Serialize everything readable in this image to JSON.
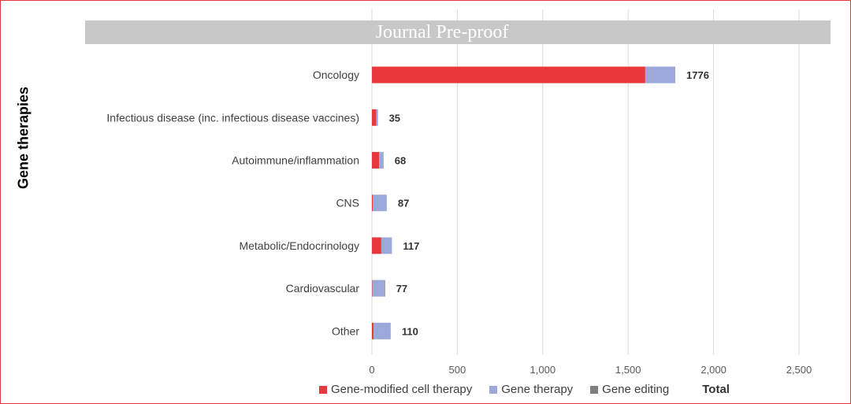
{
  "banner": "Journal Pre-proof",
  "ylabel": "Gene therapies",
  "colors": {
    "gene_modified": "#e8383d",
    "gene_therapy": "#9aa9d9",
    "gene_editing": "#7f7f7f",
    "grid": "#d9d9d9",
    "frame": "#e0353b"
  },
  "legend": {
    "items": [
      {
        "label": "Gene-modified cell therapy",
        "color": "#e8383d"
      },
      {
        "label": "Gene therapy",
        "color": "#9aa9d9"
      },
      {
        "label": "Gene editing",
        "color": "#7f7f7f"
      }
    ],
    "total_label": "Total"
  },
  "chart_data": {
    "type": "bar",
    "orientation": "horizontal",
    "stacked": true,
    "categories": [
      "Oncology",
      "Infectious disease (inc. infectious disease vaccines)",
      "Autoimmune/inflammation",
      "CNS",
      "Metabolic/Endocrinology",
      "Cardiovascular",
      "Other"
    ],
    "series": [
      {
        "name": "Gene-modified cell therapy",
        "values": [
          1600,
          25,
          42,
          5,
          55,
          3,
          10
        ]
      },
      {
        "name": "Gene therapy",
        "values": [
          176,
          8,
          24,
          82,
          62,
          70,
          100
        ]
      },
      {
        "name": "Gene editing",
        "values": [
          0,
          2,
          2,
          0,
          0,
          4,
          0
        ]
      }
    ],
    "totals": [
      1776,
      35,
      68,
      87,
      117,
      77,
      110
    ],
    "xlim": [
      0,
      2500
    ],
    "xticks": [
      0,
      500,
      1000,
      1500,
      2000,
      2500
    ],
    "xtick_labels": [
      "0",
      "500",
      "1,000",
      "1,500",
      "2,000",
      "2,500"
    ],
    "grid": true,
    "legend_position": "bottom",
    "ylabel": "Gene therapies"
  }
}
